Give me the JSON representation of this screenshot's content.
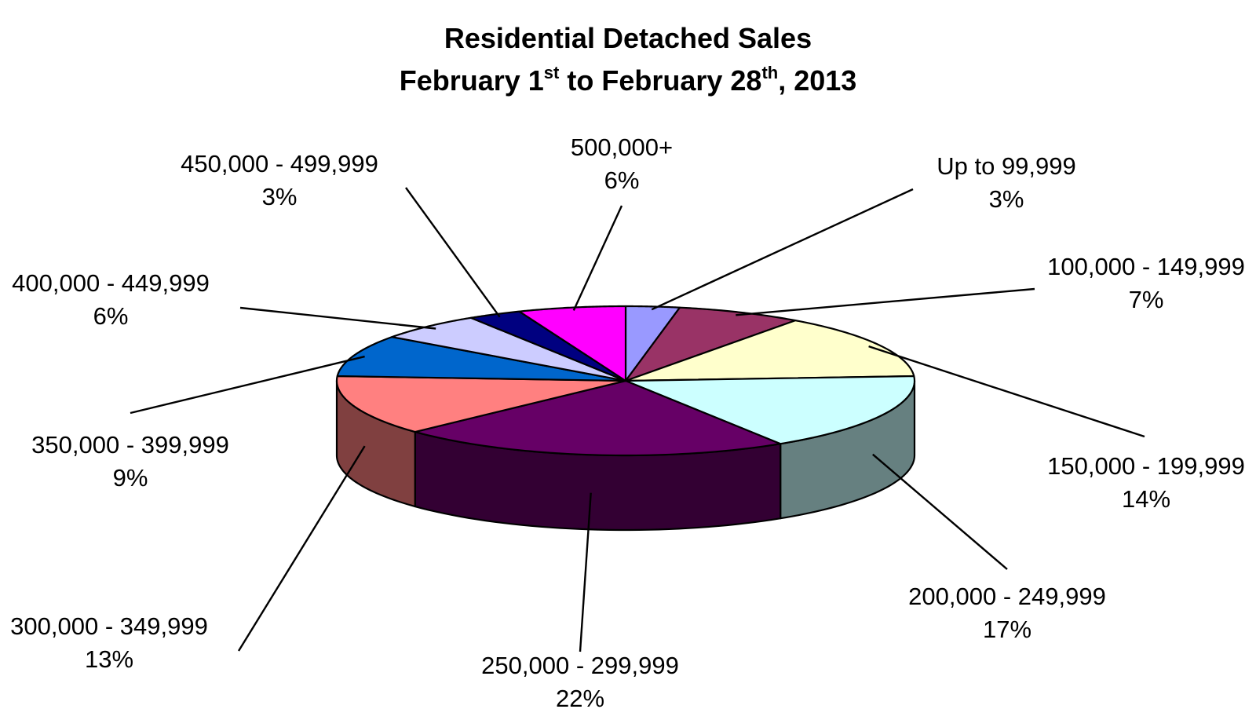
{
  "chart_data": {
    "type": "pie",
    "title": {
      "line1": "Residential Detached Sales",
      "line2_pre": "February 1",
      "line2_sup1": "st",
      "line2_mid": " to February 28",
      "line2_sup2": "th",
      "line2_post": ", 2013"
    },
    "slices": [
      {
        "label": "Up to 99,999",
        "value": 3,
        "value_label": "3%",
        "color": "#9999FF",
        "side_color": "#5A5AA8"
      },
      {
        "label": "100,000 - 149,999",
        "value": 7,
        "value_label": "7%",
        "color": "#993366",
        "side_color": "#5E1F3F"
      },
      {
        "label": "150,000 - 199,999",
        "value": 14,
        "value_label": "14%",
        "color": "#FFFFCC",
        "side_color": "#9A9A7A"
      },
      {
        "label": "200,000 - 249,999",
        "value": 17,
        "value_label": "17%",
        "color": "#CCFFFF",
        "side_color": "#668080"
      },
      {
        "label": "250,000 - 299,999",
        "value": 22,
        "value_label": "22%",
        "color": "#660066",
        "side_color": "#330033"
      },
      {
        "label": "300,000 - 349,999",
        "value": 13,
        "value_label": "13%",
        "color": "#FF8080",
        "side_color": "#804040"
      },
      {
        "label": "350,000 - 399,999",
        "value": 9,
        "value_label": "9%",
        "color": "#0066CC",
        "side_color": "#003366"
      },
      {
        "label": "400,000 - 449,999",
        "value": 6,
        "value_label": "6%",
        "color": "#CCCCFF",
        "side_color": "#7A7A99"
      },
      {
        "label": "450,000 - 499,999",
        "value": 3,
        "value_label": "3%",
        "color": "#000080",
        "side_color": "#000040"
      },
      {
        "label": "500,000+",
        "value": 6,
        "value_label": "6%",
        "color": "#FF00FF",
        "side_color": "#800080"
      }
    ],
    "legend": "none",
    "data_labels": "outside-with-leader-lines",
    "style": "3d"
  }
}
